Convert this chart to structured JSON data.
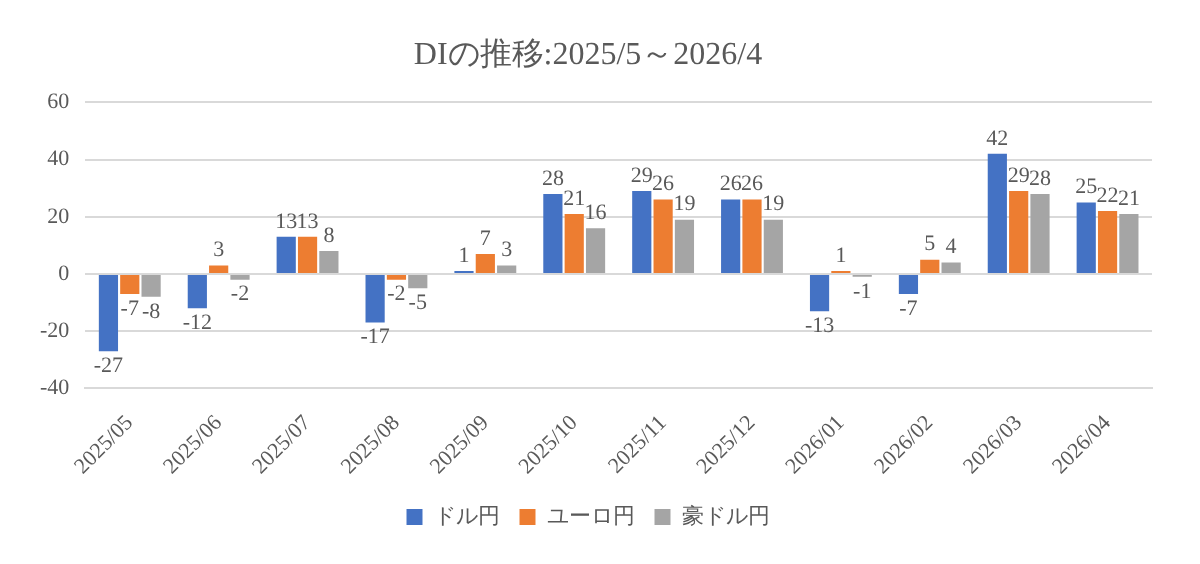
{
  "chart_data": {
    "type": "bar",
    "title": "DIの推移:2025/5～2026/4",
    "categories": [
      "2025/05",
      "2025/06",
      "2025/07",
      "2025/08",
      "2025/09",
      "2025/10",
      "2025/11",
      "2025/12",
      "2026/01",
      "2026/02",
      "2026/03",
      "2026/04"
    ],
    "series": [
      {
        "name": "ドル円",
        "color": "#4472c4",
        "values": [
          -27,
          -12,
          13,
          -17,
          1,
          28,
          29,
          26,
          -13,
          -7,
          42,
          25
        ]
      },
      {
        "name": "ユーロ円",
        "color": "#ed7d31",
        "values": [
          -7,
          3,
          13,
          -2,
          7,
          21,
          26,
          26,
          1,
          5,
          29,
          22
        ]
      },
      {
        "name": "豪ドル円",
        "color": "#a5a5a5",
        "values": [
          -8,
          -2,
          8,
          -5,
          3,
          16,
          19,
          19,
          -1,
          4,
          28,
          21
        ]
      }
    ],
    "ylim": [
      -40,
      60
    ],
    "yticks": [
      -40,
      -20,
      0,
      20,
      40,
      60
    ],
    "grid": "y",
    "legend": "bottom",
    "data_labels": true
  }
}
